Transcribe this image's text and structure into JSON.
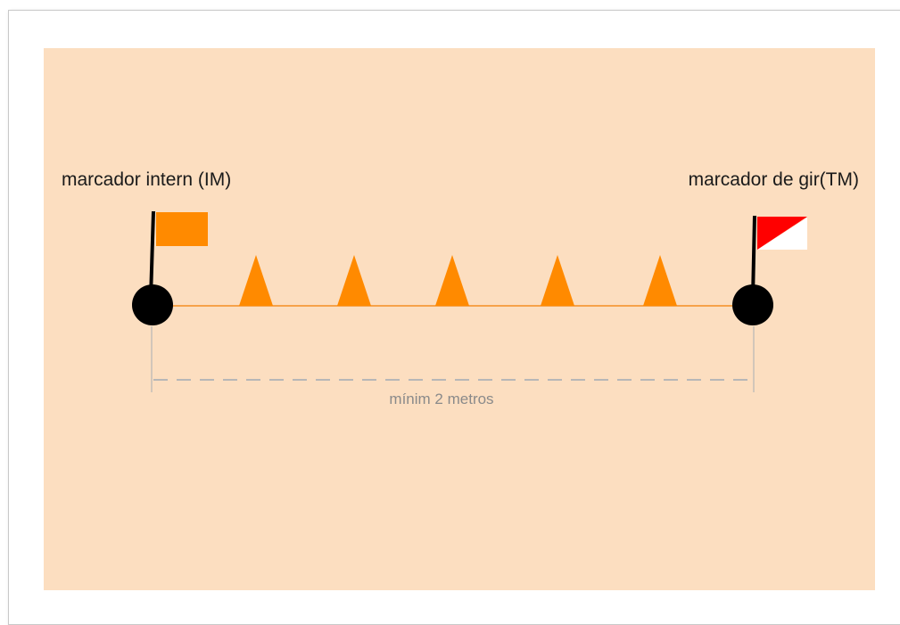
{
  "labels": {
    "inner_marker": "marcador intern (IM)",
    "turn_marker": "marcador de gir(TM)",
    "distance": "mínim 2 metros"
  },
  "colors": {
    "field": "#fcdec0",
    "cone": "#ff8a00",
    "inner_flag": "#ff8a00",
    "turn_flag_red": "#ff0000",
    "turn_flag_white": "#ffffff",
    "line": "#f6a24a",
    "dimension": "#b7b7b7"
  },
  "cone_count": 5
}
